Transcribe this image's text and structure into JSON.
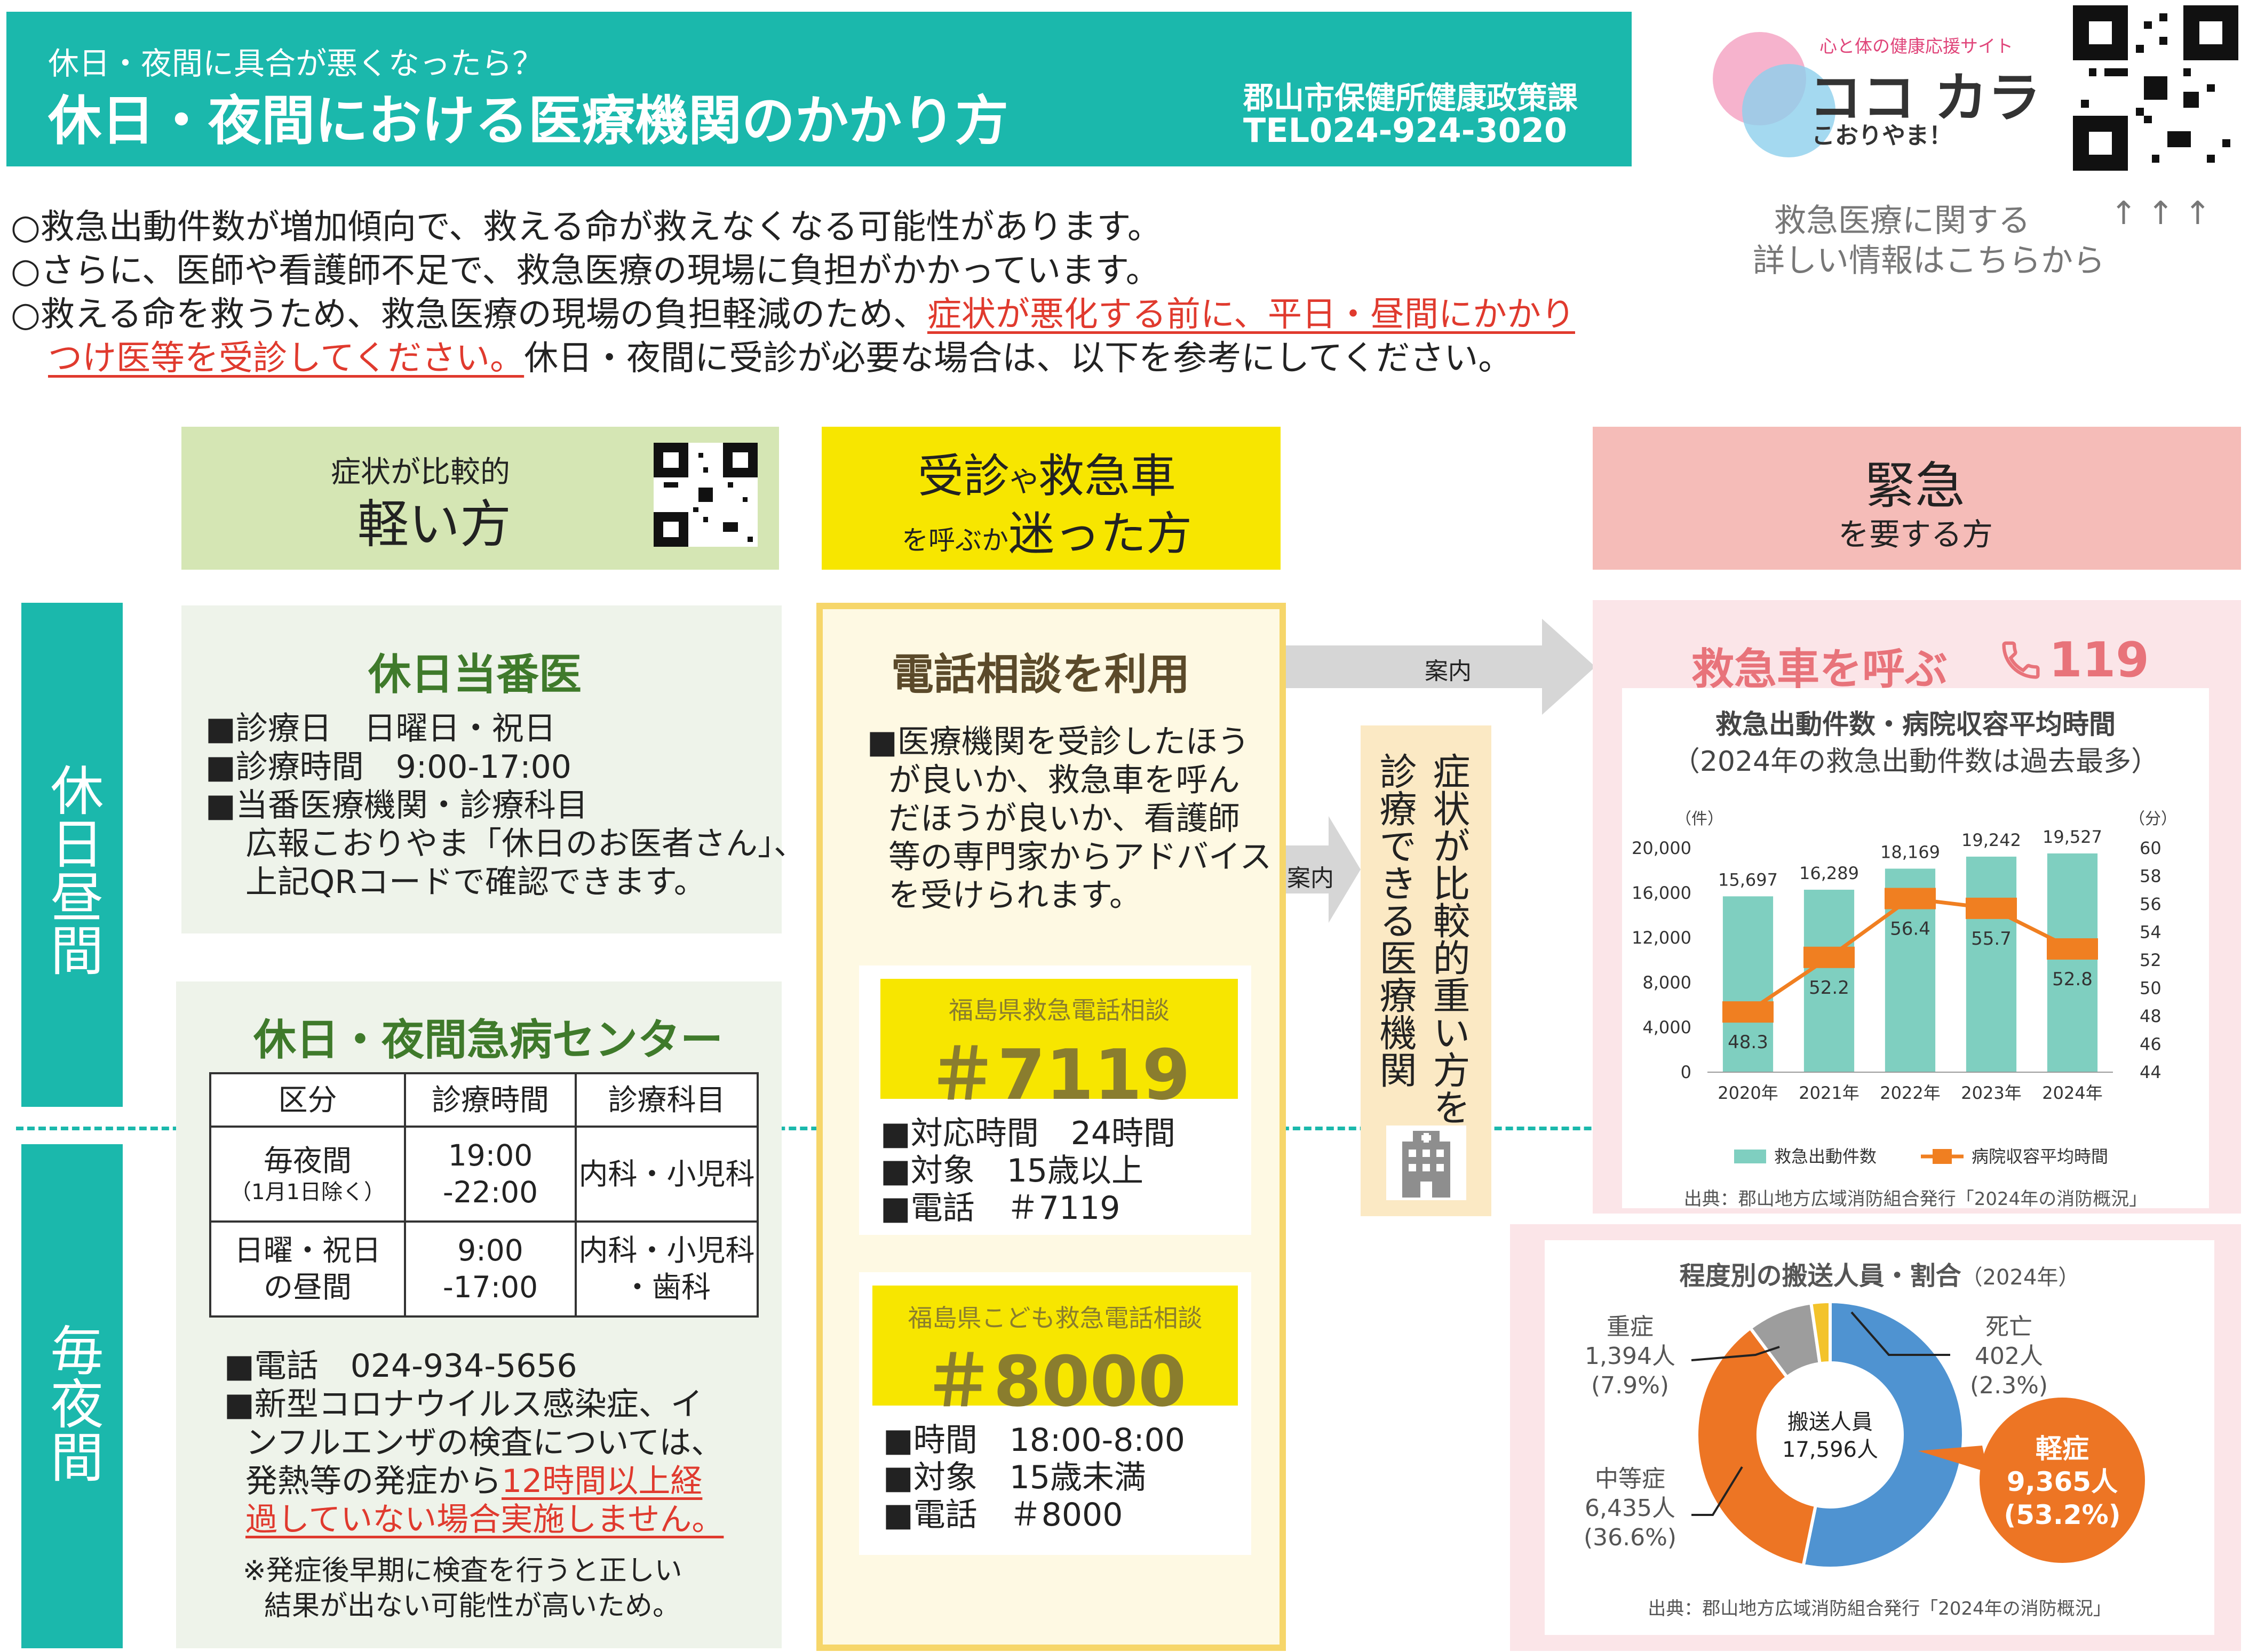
{
  "header": {
    "subtitle": "休日・夜間に具合が悪くなったら？",
    "title": "休日・夜間における医療機関のかかり方",
    "dept": "郡山市保健所健康政策課",
    "tel": "TEL024-924-3020",
    "brand_tag": "心と体の健康応援サイト",
    "brand_name": "ココ カラ",
    "brand_sub": "こおりやま！",
    "qr_caption_1": "救急医療に関する",
    "qr_caption_arrows": "↑ ↑ ↑",
    "qr_caption_2": "詳しい情報はこちらから"
  },
  "intro": {
    "line1": "○救急出動件数が増加傾向で、救える命が救えなくなる可能性があります。",
    "line2": "○さらに、医師や看護師不足で、救急医療の現場に負担がかかっています。",
    "line3_a": "○救える命を救うため、救急医療の現場の負担軽減のため、",
    "line3_b": "症状が悪化する前に、平日・昼間にかかり",
    "line4_a": "つけ医等を受診してください。",
    "line4_b": "休日・夜間に受診が必要な場合は、以下を参考にしてください。"
  },
  "columns": {
    "light_small": "症状が比較的",
    "light_big": "軽い方",
    "unsure_1a": "受診",
    "unsure_1b": "や",
    "unsure_1c": "救急車",
    "unsure_2a": "を呼ぶか",
    "unsure_2b": "迷った方",
    "urgent_big": "緊急",
    "urgent_small": "を要する方"
  },
  "side": {
    "day": "休日昼間",
    "night": "毎夜間"
  },
  "holiday_doctor": {
    "title": "休日当番医",
    "l1": "■診療日　日曜日・祝日",
    "l2": "■診療時間　9:00-17:00",
    "l3": "■当番医療機関・診療科目",
    "l4": "広報こおりやま「休日のお医者さん」、",
    "l5": "上記QRコードで確認できます。"
  },
  "emergency_center": {
    "title": "休日・夜間急病センター",
    "headers": [
      "区分",
      "診療時間",
      "診療科目"
    ],
    "r1c1a": "毎夜間",
    "r1c1b": "（1月1日除く）",
    "r1c2a": "19:00",
    "r1c2b": "-22:00",
    "r1c3": "内科・小児科",
    "r2c1a": "日曜・祝日",
    "r2c1b": "の昼間",
    "r2c2a": "9:00",
    "r2c2b": "-17:00",
    "r2c3a": "内科・小児科",
    "r2c3b": "・歯科",
    "p1": "■電話　024-934-5656",
    "p2": "■新型コロナウイルス感染症、イ",
    "p3": "ンフルエンザの検査については、",
    "p4a": "発熱等の発症から",
    "p4b": "12時間以上経",
    "p5": "過していない場合実施しません。",
    "n1": "※発症後早期に検査を行うと正しい",
    "n2": "結果が出ない可能性が高いため。"
  },
  "phone": {
    "title": "電話相談を利用",
    "d1": "■医療機関を受診したほう",
    "d2": "が良いか、救急車を呼ん",
    "d3": "だほうが良いか、看護師",
    "d4": "等の専門家からアドバイス",
    "d5": "を受けられます。",
    "c1_label": "福島県救急電話相談",
    "c1_num": "＃7119",
    "c1_l1": "■対応時間　24時間",
    "c1_l2": "■対象　15歳以上",
    "c1_l3": "■電話　＃7119",
    "c2_label": "福島県こども救急電話相談",
    "c2_num": "＃8000",
    "c2_l1": "■時間　18:00-8:00",
    "c2_l2": "■対象　15歳未満",
    "c2_l3": "■電話　＃8000"
  },
  "arrows": {
    "a1": "案内",
    "a2": "案内"
  },
  "severe": {
    "text": "症状が比較的重い方を診療できる医療機関",
    "col1": "症状が比較的重い方を",
    "col2": "診療できる医療機関"
  },
  "ambulance": {
    "title": "救急車を呼ぶ",
    "number": "119",
    "chart_title": "救急出動件数・病院収容平均時間",
    "chart_sub": "（2024年の救急出動件数は過去最多）",
    "source": "出典：郡山地方広域消防組合発行「2024年の消防概況」"
  },
  "transport": {
    "title": "程度別の搬送人員・割合",
    "title_year": "（2024年）",
    "center1": "搬送人員",
    "center2": "17,596人",
    "severe_l": "重症",
    "severe_n": "1,394人",
    "severe_p": "(7.9%)",
    "death_l": "死亡",
    "death_n": "402人",
    "death_p": "(2.3%)",
    "mod_l": "中等症",
    "mod_n": "6,435人",
    "mod_p": "(36.6%)",
    "mild_l": "軽症",
    "mild_n": "9,365人",
    "mild_p": "(53.2%)",
    "source": "出典：郡山地方広域消防組合発行「2024年の消防概況」"
  },
  "chart_data": [
    {
      "type": "bar",
      "title": "救急出動件数・病院収容平均時間",
      "subtitle": "（2024年の救急出動件数は過去最多）",
      "categories": [
        "2020年",
        "2021年",
        "2022年",
        "2023年",
        "2024年"
      ],
      "series": [
        {
          "name": "救急出動件数",
          "type": "bar",
          "axis": "left",
          "values": [
            15697,
            16289,
            18169,
            19242,
            19527
          ],
          "labels": [
            "15,697",
            "16,289",
            "18,169",
            "19,242",
            "19,527"
          ]
        },
        {
          "name": "病院収容平均時間",
          "type": "line",
          "axis": "right",
          "values": [
            48.3,
            52.2,
            56.4,
            55.7,
            52.8
          ],
          "labels": [
            "48.3",
            "52.2",
            "56.4",
            "55.7",
            "52.8"
          ]
        }
      ],
      "y_left": {
        "unit": "（件）",
        "ylim": [
          0,
          20000
        ],
        "ticks": [
          "0",
          "4,000",
          "8,000",
          "12,000",
          "16,000",
          "20,000"
        ]
      },
      "y_right": {
        "unit": "（分）",
        "ylim": [
          44,
          60
        ],
        "ticks": [
          "44",
          "46",
          "48",
          "50",
          "52",
          "54",
          "56",
          "58",
          "60"
        ]
      },
      "colors": {
        "bar": "#7fcfc0",
        "line": "#f07f21"
      },
      "legend": "bottom"
    },
    {
      "type": "pie",
      "title": "程度別の搬送人員・割合",
      "labels": [
        "軽症",
        "中等症",
        "重症",
        "死亡"
      ],
      "values": [
        9365,
        6435,
        1394,
        402
      ],
      "percent": [
        53.2,
        36.6,
        7.9,
        2.3
      ],
      "colors": [
        "#4f93d1",
        "#ed7524",
        "#9d9d9d",
        "#f3c32b"
      ]
    }
  ],
  "colors": {
    "teal": "#1bb8ac",
    "light_green": "#d5e6b4",
    "yellow": "#f7e600",
    "pink": "#f5bcb8",
    "accent_red": "#e03a2e",
    "green_text": "#3f7a2b"
  }
}
